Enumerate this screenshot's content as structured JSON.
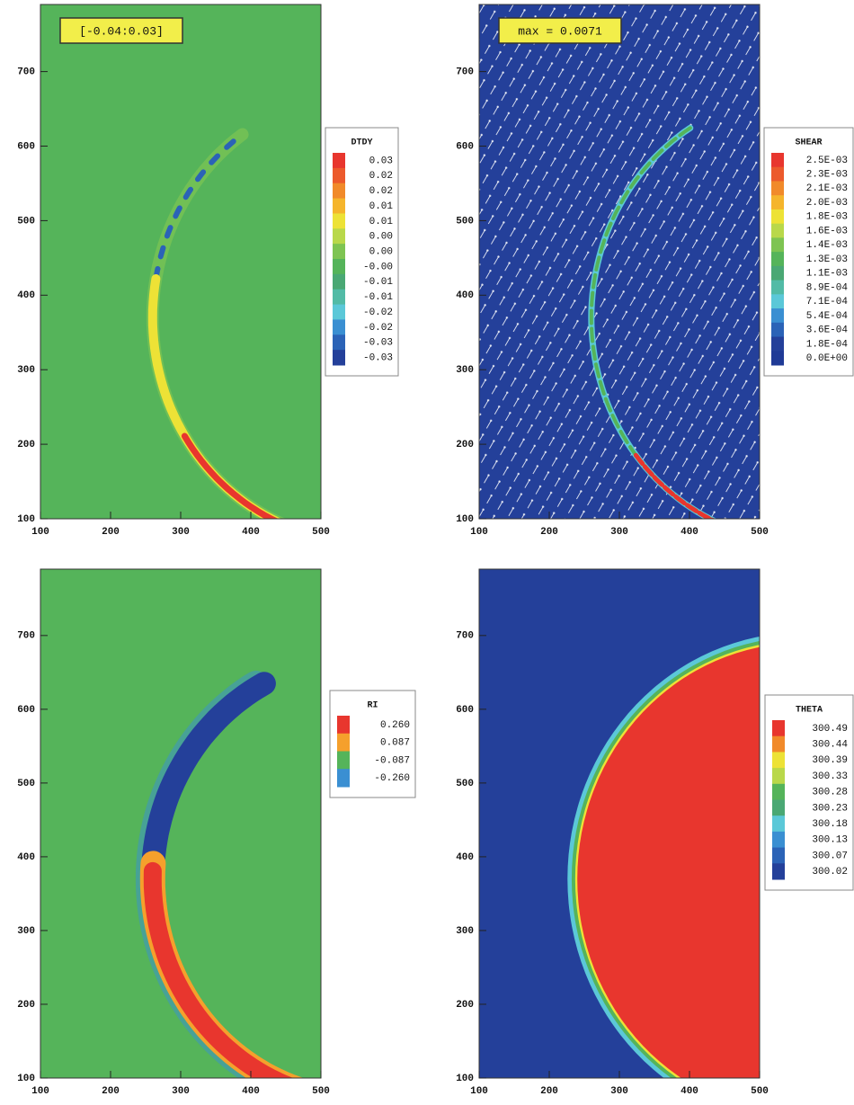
{
  "chart_data": [
    {
      "type": "contour",
      "annotation": "[-0.04:0.03]",
      "legend_title": "DTDY",
      "xlim": [
        100,
        500
      ],
      "xticks": [
        100,
        200,
        300,
        400,
        500
      ],
      "ylim": [
        100,
        790
      ],
      "yticks": [
        100,
        200,
        300,
        400,
        500,
        600,
        700
      ],
      "levels": [
        0.03,
        0.02,
        0.02,
        0.01,
        0.01,
        {
          "value": 0,
          "label": "0.00"
        },
        {
          "value": 0,
          "label": "0.00"
        },
        {
          "value": 0,
          "label": "-0.00"
        },
        -0.01,
        -0.01,
        -0.02,
        -0.02,
        -0.03,
        -0.03
      ],
      "colors": [
        "#e8362e",
        "#ec5a2c",
        "#f18a2a",
        "#f5b52c",
        "#ede236",
        "#b9d84a",
        "#7ec452",
        "#55b45a",
        "#4aa874",
        "#52bba6",
        "#5bc8d8",
        "#3a8fd2",
        "#2b63b7",
        "#24409a"
      ]
    },
    {
      "type": "contour",
      "annotation": "max = 0.0071",
      "legend_title": "SHEAR",
      "xlim": [
        100,
        500
      ],
      "xticks": [
        100,
        200,
        300,
        400,
        500
      ],
      "ylim": [
        100,
        790
      ],
      "yticks": [
        100,
        200,
        300,
        400,
        500,
        600,
        700
      ],
      "levels": [
        {
          "value": 0.0025,
          "label": "2.5E-03"
        },
        {
          "value": 0.0023,
          "label": "2.3E-03"
        },
        {
          "value": 0.0021,
          "label": "2.1E-03"
        },
        {
          "value": 0.002,
          "label": "2.0E-03"
        },
        {
          "value": 0.0018,
          "label": "1.8E-03"
        },
        {
          "value": 0.0016,
          "label": "1.6E-03"
        },
        {
          "value": 0.0014,
          "label": "1.4E-03"
        },
        {
          "value": 0.0013,
          "label": "1.3E-03"
        },
        {
          "value": 0.0011,
          "label": "1.1E-03"
        },
        {
          "value": 0.00089,
          "label": "8.9E-04"
        },
        {
          "value": 0.00071,
          "label": "7.1E-04"
        },
        {
          "value": 0.00054,
          "label": "5.4E-04"
        },
        {
          "value": 0.00036,
          "label": "3.6E-04"
        },
        {
          "value": 0.00018,
          "label": "1.8E-04"
        },
        {
          "value": 0,
          "label": "0.0E+00"
        }
      ],
      "colors": [
        "#e8362e",
        "#ec5a2c",
        "#f18a2a",
        "#f5b52c",
        "#ede236",
        "#b9d84a",
        "#7ec452",
        "#55b45a",
        "#4aa874",
        "#52bba6",
        "#5bc8d8",
        "#3a8fd2",
        "#2b63b7",
        "#24409a",
        "#1f3a96"
      ]
    },
    {
      "type": "contour",
      "legend_title": "RI",
      "xlim": [
        100,
        500
      ],
      "xticks": [
        100,
        200,
        300,
        400,
        500
      ],
      "ylim": [
        100,
        790
      ],
      "yticks": [
        100,
        200,
        300,
        400,
        500,
        600,
        700
      ],
      "levels": [
        {
          "value": 0.26,
          "label": "0.260"
        },
        0.087,
        -0.087,
        {
          "value": -0.26,
          "label": "-0.260"
        }
      ],
      "colors": [
        "#e8362e",
        "#f5a02c",
        "#55b45a",
        "#3a8fd2",
        "#24409a"
      ]
    },
    {
      "type": "contour",
      "legend_title": "THETA",
      "xlim": [
        100,
        500
      ],
      "xticks": [
        100,
        200,
        300,
        400,
        500
      ],
      "ylim": [
        100,
        790
      ],
      "yticks": [
        100,
        200,
        300,
        400,
        500,
        600,
        700
      ],
      "levels": [
        300.49,
        300.44,
        300.39,
        300.33,
        300.28,
        300.23,
        300.18,
        300.13,
        300.07,
        300.02
      ],
      "colors": [
        "#e8362e",
        "#f18a2a",
        "#ede236",
        "#b9d84a",
        "#55b45a",
        "#4aa874",
        "#5bc8d8",
        "#3a8fd2",
        "#2b63b7",
        "#24409a"
      ]
    }
  ]
}
